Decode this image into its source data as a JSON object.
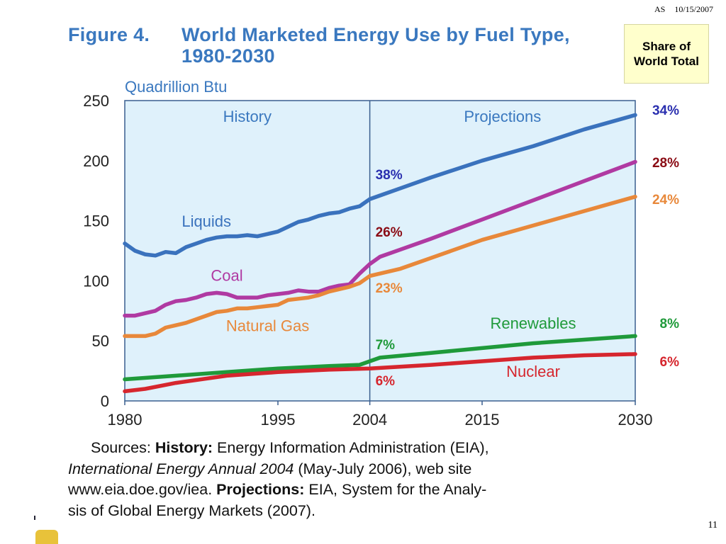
{
  "header": {
    "author": "AS",
    "date": "10/15/2007"
  },
  "figure_number": "Figure 4.",
  "title_text": "World Marketed Energy Use by Fuel Type, 1980-2030",
  "share_box": "Share of World Total",
  "page_number": "11",
  "sources": {
    "prefix": "Sources: ",
    "history_label": "History:",
    "history_text_1": " Energy Information Administration (EIA),",
    "history_pub": "International Energy Annual 2004",
    "history_text_2": " (May-July 2006), web site",
    "history_text_3": "www.eia.doe.gov/iea. ",
    "projections_label": "Projections:",
    "projections_text_1": " EIA, System for the Analy-",
    "projections_text_2": "sis of Global Energy Markets (2007)."
  },
  "colors": {
    "plot_bg": "#dff1fb",
    "title": "#3a78bf",
    "liquids": "#3a72bd",
    "coal": "#b03aa2",
    "natural_gas": "#e8883a",
    "renewables": "#1f9a3a",
    "nuclear": "#d6262e"
  },
  "chart_data": {
    "type": "line",
    "ylabel": "Quadrillion Btu",
    "ylim": [
      0,
      250
    ],
    "xlim": [
      1980,
      2030
    ],
    "x_ticks": [
      "1980",
      "1995",
      "2004",
      "2015",
      "2030"
    ],
    "y_ticks": [
      "0",
      "50",
      "100",
      "150",
      "200",
      "250"
    ],
    "divider_year": 2004,
    "region_labels": [
      "History",
      "Projections"
    ],
    "series": [
      {
        "name": "Liquids",
        "color_key": "liquids",
        "x": [
          1980,
          1981,
          1982,
          1983,
          1984,
          1985,
          1986,
          1987,
          1988,
          1989,
          1990,
          1991,
          1992,
          1993,
          1994,
          1995,
          1996,
          1997,
          1998,
          1999,
          2000,
          2001,
          2002,
          2003,
          2004,
          2005,
          2007,
          2010,
          2015,
          2020,
          2025,
          2030
        ],
        "y": [
          131,
          125,
          122,
          121,
          124,
          123,
          128,
          131,
          134,
          136,
          137,
          137,
          138,
          137,
          139,
          141,
          145,
          149,
          151,
          154,
          156,
          157,
          160,
          162,
          168,
          171,
          177,
          186,
          200,
          212,
          226,
          238
        ]
      },
      {
        "name": "Coal",
        "color_key": "coal",
        "x": [
          1980,
          1981,
          1982,
          1983,
          1984,
          1985,
          1986,
          1987,
          1988,
          1989,
          1990,
          1991,
          1992,
          1993,
          1994,
          1995,
          1996,
          1997,
          1998,
          1999,
          2000,
          2001,
          2002,
          2003,
          2004,
          2005,
          2007,
          2010,
          2015,
          2020,
          2025,
          2030
        ],
        "y": [
          71,
          71,
          73,
          75,
          80,
          83,
          84,
          86,
          89,
          90,
          89,
          86,
          86,
          86,
          88,
          89,
          90,
          92,
          91,
          91,
          94,
          96,
          97,
          106,
          114,
          120,
          126,
          135,
          151,
          167,
          183,
          199
        ]
      },
      {
        "name": "Natural Gas",
        "color_key": "natural_gas",
        "x": [
          1980,
          1981,
          1982,
          1983,
          1984,
          1985,
          1986,
          1987,
          1988,
          1989,
          1990,
          1991,
          1992,
          1993,
          1994,
          1995,
          1996,
          1997,
          1998,
          1999,
          2000,
          2001,
          2002,
          2003,
          2004,
          2007,
          2010,
          2015,
          2020,
          2025,
          2030
        ],
        "y": [
          54,
          54,
          54,
          56,
          61,
          63,
          65,
          68,
          71,
          74,
          75,
          77,
          77,
          78,
          79,
          80,
          84,
          85,
          86,
          88,
          91,
          93,
          95,
          98,
          104,
          110,
          119,
          134,
          146,
          158,
          170
        ]
      },
      {
        "name": "Renewables",
        "color_key": "renewables",
        "x": [
          1980,
          1985,
          1990,
          1995,
          2000,
          2003,
          2004,
          2005,
          2010,
          2015,
          2020,
          2025,
          2030
        ],
        "y": [
          18,
          21,
          24,
          27,
          29,
          30,
          33,
          36,
          40,
          44,
          48,
          51,
          54
        ]
      },
      {
        "name": "Nuclear",
        "color_key": "nuclear",
        "x": [
          1980,
          1982,
          1985,
          1990,
          1995,
          2000,
          2004,
          2010,
          2015,
          2020,
          2025,
          2030
        ],
        "y": [
          8,
          10,
          15,
          21,
          24,
          26,
          27,
          30,
          33,
          36,
          38,
          39
        ]
      }
    ],
    "share_2004": [
      {
        "series": "Liquids",
        "label": "38%"
      },
      {
        "series": "Coal",
        "label": "26%"
      },
      {
        "series": "Natural Gas",
        "label": "23%"
      },
      {
        "series": "Renewables",
        "label": "7%"
      },
      {
        "series": "Nuclear",
        "label": "6%"
      }
    ],
    "share_2030": [
      {
        "series": "Liquids",
        "label": "34%"
      },
      {
        "series": "Coal",
        "label": "28%"
      },
      {
        "series": "Natural Gas",
        "label": "24%"
      },
      {
        "series": "Renewables",
        "label": "8%"
      },
      {
        "series": "Nuclear",
        "label": "6%"
      }
    ]
  }
}
